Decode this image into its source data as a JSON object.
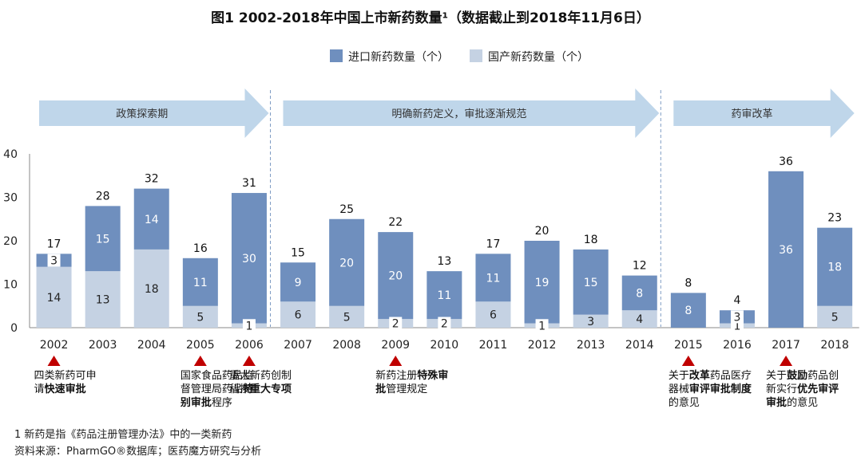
{
  "colors": {
    "imported": "#6f8fbe",
    "domestic": "#c5d2e3",
    "arrow": "#bfd6ea",
    "marker": "#c00000",
    "axis": "#888888"
  },
  "legend": {
    "imported": "进口新药数量（个）",
    "domestic": "国产新药数量（个）"
  },
  "phases": [
    {
      "label": "政策探索期",
      "first_year": "2002",
      "last_year": "2006"
    },
    {
      "label": "明确新药定义，审批逐渐规范",
      "first_year": "2007",
      "last_year": "2014"
    },
    {
      "label": "药审改革",
      "first_year": "2015",
      "last_year": "2018"
    }
  ],
  "annotations": [
    {
      "year": "2002",
      "lines": [
        [
          {
            "t": "四类新药可申",
            "b": false
          }
        ],
        [
          {
            "t": "请",
            "b": false
          },
          {
            "t": "快速审批",
            "b": true
          }
        ]
      ]
    },
    {
      "year": "2005",
      "lines": [
        [
          {
            "t": "国家食品药品监",
            "b": false
          }
        ],
        [
          {
            "t": "督管理局药品",
            "b": false
          },
          {
            "t": "特",
            "b": true
          }
        ],
        [
          {
            "t": "别审批",
            "b": true
          },
          {
            "t": "程序",
            "b": false
          }
        ]
      ]
    },
    {
      "year": "2006",
      "lines": [
        [
          {
            "t": "重大新药创制",
            "b": false
          }
        ],
        [
          {
            "t": "科技",
            "b": false
          },
          {
            "t": "重大专项",
            "b": true
          }
        ]
      ]
    },
    {
      "year": "2009",
      "lines": [
        [
          {
            "t": "新药注册",
            "b": false
          },
          {
            "t": "特殊审",
            "b": true
          }
        ],
        [
          {
            "t": "批",
            "b": true
          },
          {
            "t": "管理规定",
            "b": false
          }
        ]
      ]
    },
    {
      "year": "2015",
      "lines": [
        [
          {
            "t": "关于",
            "b": false
          },
          {
            "t": "改革",
            "b": true
          },
          {
            "t": "药品医疗",
            "b": false
          }
        ],
        [
          {
            "t": "器械",
            "b": false
          },
          {
            "t": "审评审批制度",
            "b": true
          }
        ],
        [
          {
            "t": "的意见",
            "b": false
          }
        ]
      ]
    },
    {
      "year": "2017",
      "lines": [
        [
          {
            "t": "关于",
            "b": false
          },
          {
            "t": "鼓励",
            "b": true
          },
          {
            "t": "药品创",
            "b": false
          }
        ],
        [
          {
            "t": "新实行",
            "b": false
          },
          {
            "t": "优先审评",
            "b": true
          }
        ],
        [
          {
            "t": "审批",
            "b": true
          },
          {
            "t": "的意见",
            "b": false
          }
        ]
      ]
    }
  ],
  "footnotes": {
    "note1": "1 新药是指《药品注册管理办法》中的一类新药",
    "source": "资料来源：PharmGO®数据库；医药魔方研究与分析"
  },
  "chart_data": {
    "type": "bar",
    "stacked": true,
    "title": "图1 2002-2018年中国上市新药数量¹（数据截止到2018年11月6日）",
    "categories": [
      "2002",
      "2003",
      "2004",
      "2005",
      "2006",
      "2007",
      "2008",
      "2009",
      "2010",
      "2011",
      "2012",
      "2013",
      "2014",
      "2015",
      "2016",
      "2017",
      "2018"
    ],
    "series": [
      {
        "name": "国产新药数量（个）",
        "key": "domestic",
        "values": [
          14,
          13,
          18,
          5,
          1,
          6,
          5,
          2,
          2,
          6,
          1,
          3,
          4,
          0,
          1,
          0,
          5
        ]
      },
      {
        "name": "进口新药数量（个）",
        "key": "imported",
        "values": [
          3,
          15,
          14,
          11,
          30,
          9,
          20,
          20,
          11,
          11,
          19,
          15,
          8,
          8,
          3,
          36,
          18
        ]
      }
    ],
    "totals": [
      17,
      28,
      32,
      16,
      31,
      15,
      25,
      22,
      13,
      17,
      20,
      18,
      12,
      8,
      4,
      36,
      23
    ],
    "ylim": [
      0,
      40
    ],
    "yticks": [
      0,
      10,
      20,
      30,
      40
    ],
    "grid": false,
    "legend_position": "top"
  }
}
